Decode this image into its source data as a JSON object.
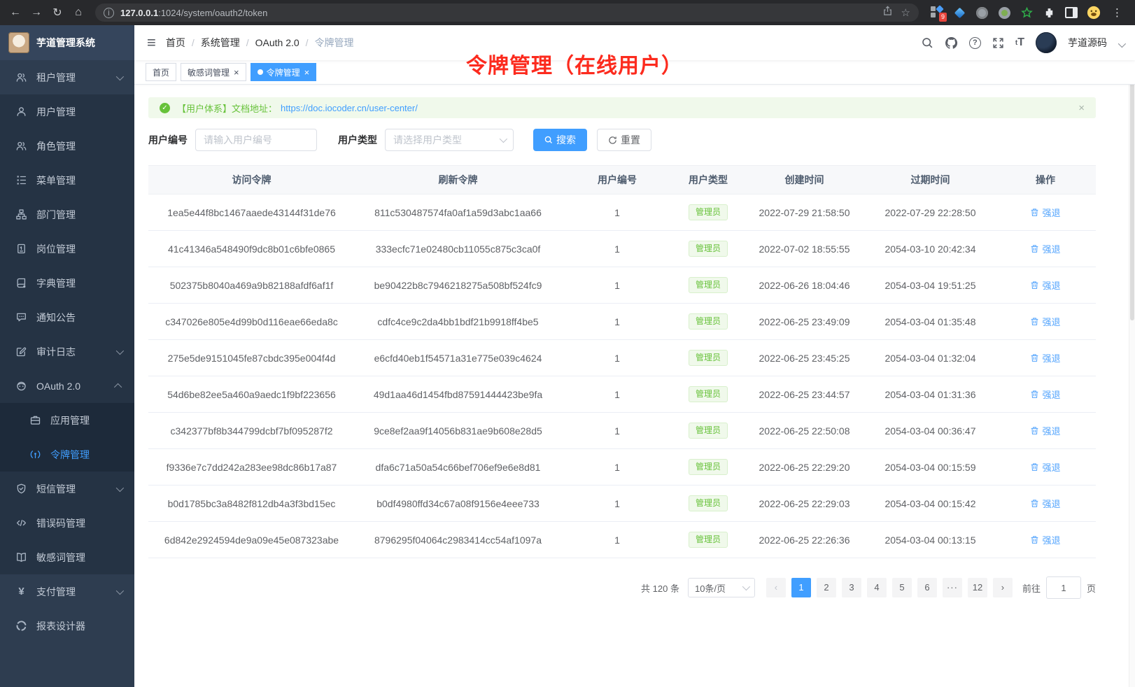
{
  "browser": {
    "url_host": "127.0.0.1",
    "url_path": ":1024/system/oauth2/token",
    "extension_badge": "9"
  },
  "sidebar": {
    "title": "芋道管理系统",
    "items": [
      {
        "key": "tenant",
        "label": "租户管理",
        "icon": "users",
        "arrow": "down",
        "level": 0
      },
      {
        "key": "user",
        "label": "用户管理",
        "icon": "user",
        "level": 1
      },
      {
        "key": "role",
        "label": "角色管理",
        "icon": "users",
        "level": 1
      },
      {
        "key": "menu",
        "label": "菜单管理",
        "icon": "menu-tree",
        "level": 1
      },
      {
        "key": "dept",
        "label": "部门管理",
        "icon": "sitemap",
        "level": 1
      },
      {
        "key": "post",
        "label": "岗位管理",
        "icon": "badge",
        "level": 1
      },
      {
        "key": "dict",
        "label": "字典管理",
        "icon": "dictionary",
        "level": 1
      },
      {
        "key": "notice",
        "label": "通知公告",
        "icon": "message",
        "level": 1
      },
      {
        "key": "audit-log",
        "label": "审计日志",
        "icon": "edit",
        "arrow": "down",
        "level": 1
      },
      {
        "key": "oauth2",
        "label": "OAuth 2.0",
        "icon": "robot",
        "arrow": "up",
        "level": 1
      },
      {
        "key": "oauth2-app",
        "label": "应用管理",
        "icon": "app",
        "level": 2
      },
      {
        "key": "oauth2-token",
        "label": "令牌管理",
        "icon": "signal",
        "level": 2,
        "active": true
      },
      {
        "key": "sms",
        "label": "短信管理",
        "icon": "shield",
        "arrow": "down",
        "level": 1
      },
      {
        "key": "error-code",
        "label": "错误码管理",
        "icon": "code",
        "level": 1
      },
      {
        "key": "sensitive-word",
        "label": "敏感词管理",
        "icon": "open-book",
        "level": 1
      },
      {
        "key": "pay",
        "label": "支付管理",
        "icon": "yen",
        "arrow": "down",
        "level": 0
      },
      {
        "key": "report-designer",
        "label": "报表设计器",
        "icon": "chart-design",
        "level": 0
      }
    ]
  },
  "header": {
    "breadcrumb": [
      "首页",
      "系统管理",
      "OAuth 2.0",
      "令牌管理"
    ],
    "user_name": "芋道源码"
  },
  "tabs": [
    {
      "key": "home",
      "label": "首页",
      "active": false,
      "closable": false
    },
    {
      "key": "sensitive-word",
      "label": "敏感词管理",
      "active": false,
      "closable": true
    },
    {
      "key": "token",
      "label": "令牌管理",
      "active": true,
      "closable": true
    }
  ],
  "annotation": "令牌管理（在线用户）",
  "alert": {
    "text": "【用户体系】文档地址：",
    "link": "https://doc.iocoder.cn/user-center/"
  },
  "filters": {
    "user_id_label": "用户编号",
    "user_id_placeholder": "请输入用户编号",
    "user_type_label": "用户类型",
    "user_type_placeholder": "请选择用户类型",
    "search_label": "搜索",
    "reset_label": "重置"
  },
  "table": {
    "headers": [
      "访问令牌",
      "刷新令牌",
      "用户编号",
      "用户类型",
      "创建时间",
      "过期时间",
      "操作"
    ],
    "action_label": "强退",
    "rows": [
      {
        "access_token": "1ea5e44f8bc1467aaede43144f31de76",
        "refresh_token": "811c530487574fa0af1a59d3abc1aa66",
        "user_id": "1",
        "user_type": "管理员",
        "create_time": "2022-07-29 21:58:50",
        "expire_time": "2022-07-29 22:28:50"
      },
      {
        "access_token": "41c41346a548490f9dc8b01c6bfe0865",
        "refresh_token": "333ecfc71e02480cb11055c875c3ca0f",
        "user_id": "1",
        "user_type": "管理员",
        "create_time": "2022-07-02 18:55:55",
        "expire_time": "2054-03-10 20:42:34"
      },
      {
        "access_token": "502375b8040a469a9b82188afdf6af1f",
        "refresh_token": "be90422b8c7946218275a508bf524fc9",
        "user_id": "1",
        "user_type": "管理员",
        "create_time": "2022-06-26 18:04:46",
        "expire_time": "2054-03-04 19:51:25"
      },
      {
        "access_token": "c347026e805e4d99b0d116eae66eda8c",
        "refresh_token": "cdfc4ce9c2da4bb1bdf21b9918ff4be5",
        "user_id": "1",
        "user_type": "管理员",
        "create_time": "2022-06-25 23:49:09",
        "expire_time": "2054-03-04 01:35:48"
      },
      {
        "access_token": "275e5de9151045fe87cbdc395e004f4d",
        "refresh_token": "e6cfd40eb1f54571a31e775e039c4624",
        "user_id": "1",
        "user_type": "管理员",
        "create_time": "2022-06-25 23:45:25",
        "expire_time": "2054-03-04 01:32:04"
      },
      {
        "access_token": "54d6be82ee5a460a9aedc1f9bf223656",
        "refresh_token": "49d1aa46d1454fbd87591444423be9fa",
        "user_id": "1",
        "user_type": "管理员",
        "create_time": "2022-06-25 23:44:57",
        "expire_time": "2054-03-04 01:31:36"
      },
      {
        "access_token": "c342377bf8b344799dcbf7bf095287f2",
        "refresh_token": "9ce8ef2aa9f14056b831ae9b608e28d5",
        "user_id": "1",
        "user_type": "管理员",
        "create_time": "2022-06-25 22:50:08",
        "expire_time": "2054-03-04 00:36:47"
      },
      {
        "access_token": "f9336e7c7dd242a283ee98dc86b17a87",
        "refresh_token": "dfa6c71a50a54c66bef706ef9e6e8d81",
        "user_id": "1",
        "user_type": "管理员",
        "create_time": "2022-06-25 22:29:20",
        "expire_time": "2054-03-04 00:15:59"
      },
      {
        "access_token": "b0d1785bc3a8482f812db4a3f3bd15ec",
        "refresh_token": "b0df4980ffd34c67a08f9156e4eee733",
        "user_id": "1",
        "user_type": "管理员",
        "create_time": "2022-06-25 22:29:03",
        "expire_time": "2054-03-04 00:15:42"
      },
      {
        "access_token": "6d842e2924594de9a09e45e087323abe",
        "refresh_token": "8796295f04064c2983414cc54af1097a",
        "user_id": "1",
        "user_type": "管理员",
        "create_time": "2022-06-25 22:26:36",
        "expire_time": "2054-03-04 00:13:15"
      }
    ]
  },
  "pagination": {
    "total_label": "共 120 条",
    "page_size": "10条/页",
    "pages": [
      "1",
      "2",
      "3",
      "4",
      "5",
      "6",
      "···",
      "12"
    ],
    "active_page": "1",
    "goto_label": "前往",
    "goto_value": "1",
    "page_label": "页"
  },
  "colors": {
    "accent": "#409eff",
    "success": "#67c23a",
    "annotation_red": "#fc2b1e",
    "sidebar_bg": "#2e3d50",
    "sidebar_submenu_bg": "#253344"
  }
}
